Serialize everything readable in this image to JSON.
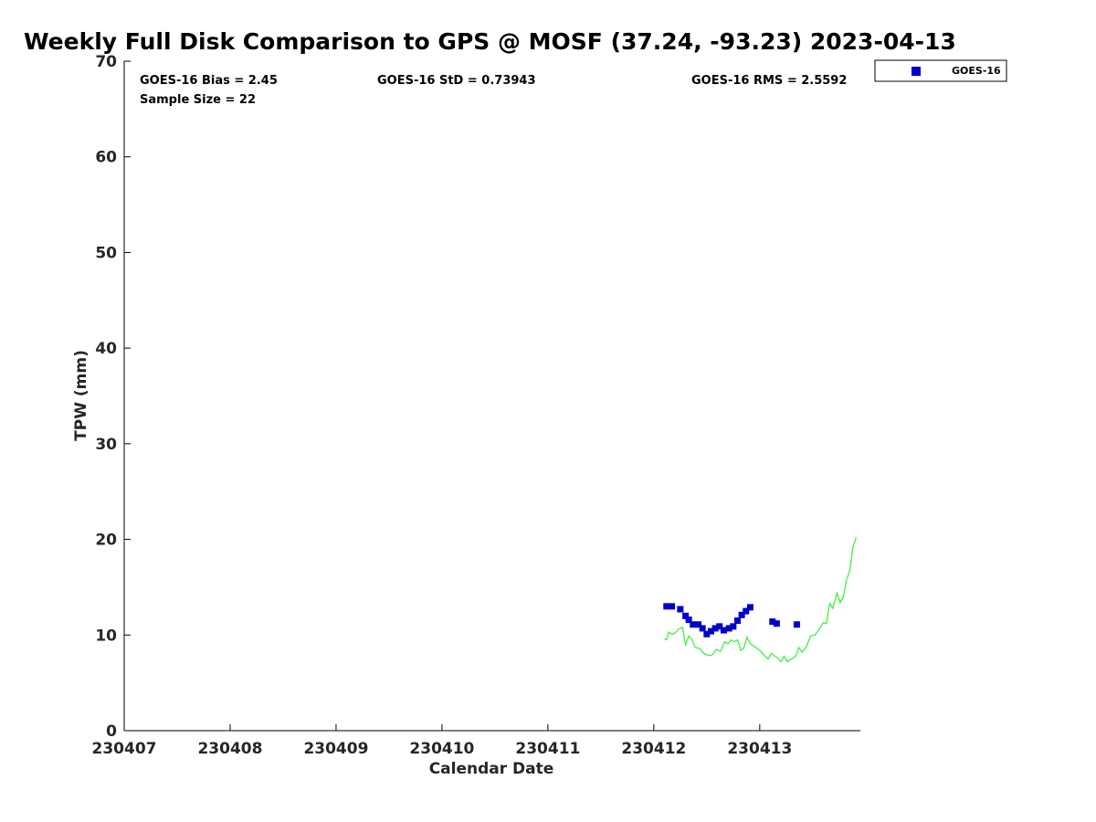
{
  "chart_data": {
    "type": "scatter",
    "title": "Weekly Full Disk Comparison to GPS @ MOSF (37.24, -93.23) 2023-04-13",
    "xlabel": "Calendar Date",
    "ylabel": "TPW (mm)",
    "x_unit": "days",
    "xlim": [
      0,
      6.95
    ],
    "ylim": [
      0,
      70
    ],
    "x_ticks": [
      {
        "x": 0,
        "label": "230407"
      },
      {
        "x": 1,
        "label": "230408"
      },
      {
        "x": 2,
        "label": "230409"
      },
      {
        "x": 3,
        "label": "230410"
      },
      {
        "x": 4,
        "label": "230411"
      },
      {
        "x": 5,
        "label": "230412"
      },
      {
        "x": 6,
        "label": "230413"
      }
    ],
    "y_ticks": [
      0,
      10,
      20,
      30,
      40,
      50,
      60,
      70
    ],
    "grid": false,
    "legend": {
      "position": "top-right-outside",
      "entries": [
        {
          "name": "GOES-16",
          "color": "#0000cc",
          "marker": "square"
        }
      ]
    },
    "stats": {
      "bias": "GOES-16 Bias = 2.45",
      "std": "GOES-16 StD = 0.73943",
      "rms": "GOES-16 RMS = 2.5592",
      "sample": "Sample Size = 22"
    },
    "series": [
      {
        "name": "GOES-16",
        "kind": "scatter",
        "color": "#0000cc",
        "points": [
          [
            5.12,
            13.0
          ],
          [
            5.17,
            13.0
          ],
          [
            5.25,
            12.7
          ],
          [
            5.3,
            12.0
          ],
          [
            5.33,
            11.6
          ],
          [
            5.37,
            11.1
          ],
          [
            5.42,
            11.1
          ],
          [
            5.46,
            10.7
          ],
          [
            5.5,
            10.1
          ],
          [
            5.54,
            10.4
          ],
          [
            5.58,
            10.7
          ],
          [
            5.62,
            10.9
          ],
          [
            5.66,
            10.5
          ],
          [
            5.71,
            10.7
          ],
          [
            5.75,
            10.9
          ],
          [
            5.79,
            11.5
          ],
          [
            5.83,
            12.1
          ],
          [
            5.87,
            12.5
          ],
          [
            5.91,
            12.9
          ],
          [
            6.12,
            11.4
          ],
          [
            6.16,
            11.2
          ],
          [
            6.35,
            11.1
          ]
        ]
      },
      {
        "kind": "line",
        "color": "#33ee33",
        "points": [
          [
            5.1,
            9.6
          ],
          [
            5.12,
            9.5
          ],
          [
            5.14,
            10.3
          ],
          [
            5.17,
            10.1
          ],
          [
            5.2,
            10.2
          ],
          [
            5.23,
            10.6
          ],
          [
            5.27,
            10.8
          ],
          [
            5.3,
            9.0
          ],
          [
            5.33,
            9.9
          ],
          [
            5.36,
            9.5
          ],
          [
            5.39,
            8.7
          ],
          [
            5.43,
            8.6
          ],
          [
            5.47,
            8.1
          ],
          [
            5.51,
            7.9
          ],
          [
            5.55,
            7.9
          ],
          [
            5.59,
            8.5
          ],
          [
            5.63,
            8.3
          ],
          [
            5.67,
            9.3
          ],
          [
            5.7,
            9.1
          ],
          [
            5.73,
            9.5
          ],
          [
            5.76,
            9.3
          ],
          [
            5.79,
            9.5
          ],
          [
            5.82,
            8.4
          ],
          [
            5.85,
            8.6
          ],
          [
            5.88,
            9.8
          ],
          [
            5.91,
            9.1
          ],
          [
            5.95,
            8.8
          ],
          [
            6.0,
            8.4
          ],
          [
            6.05,
            7.8
          ],
          [
            6.08,
            7.5
          ],
          [
            6.11,
            8.1
          ],
          [
            6.14,
            7.8
          ],
          [
            6.17,
            7.6
          ],
          [
            6.2,
            7.2
          ],
          [
            6.23,
            7.8
          ],
          [
            6.26,
            7.2
          ],
          [
            6.3,
            7.5
          ],
          [
            6.34,
            7.8
          ],
          [
            6.37,
            8.7
          ],
          [
            6.4,
            8.2
          ],
          [
            6.44,
            8.8
          ],
          [
            6.48,
            9.9
          ],
          [
            6.52,
            10.0
          ],
          [
            6.56,
            10.6
          ],
          [
            6.6,
            11.3
          ],
          [
            6.63,
            11.2
          ],
          [
            6.66,
            13.3
          ],
          [
            6.69,
            12.8
          ],
          [
            6.73,
            14.4
          ],
          [
            6.76,
            13.4
          ],
          [
            6.79,
            14.0
          ],
          [
            6.82,
            15.8
          ],
          [
            6.85,
            16.7
          ],
          [
            6.88,
            19.2
          ],
          [
            6.91,
            20.2
          ]
        ]
      }
    ]
  }
}
